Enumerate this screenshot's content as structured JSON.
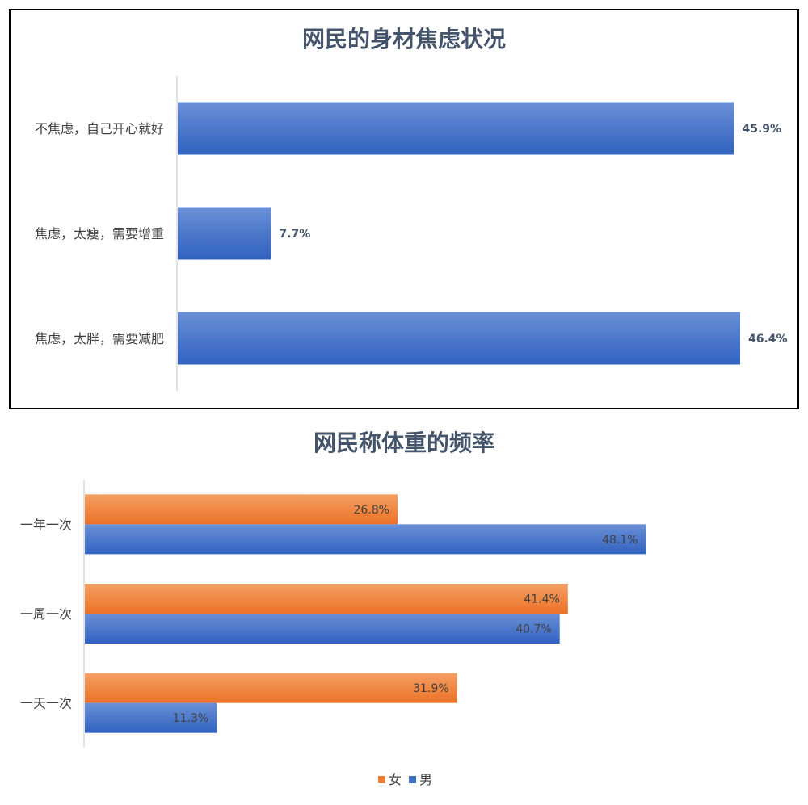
{
  "chart_data": [
    {
      "type": "bar",
      "orientation": "horizontal",
      "title": "网民的身材焦虑状况",
      "categories": [
        "不焦虑，自己开心就好",
        "焦虑，太瘦，需要增重",
        "焦虑，太胖，需要减肥"
      ],
      "values": [
        45.9,
        7.7,
        46.4
      ],
      "value_labels": [
        "45.9%",
        "7.7%",
        "46.4%"
      ],
      "xlim": [
        0,
        50
      ],
      "grid": false,
      "colors": [
        "#4472c4"
      ]
    },
    {
      "type": "bar",
      "orientation": "horizontal",
      "title": "网民称体重的频率",
      "categories": [
        "一年一次",
        "一周一次",
        "一天一次"
      ],
      "series": [
        {
          "name": "女",
          "values": [
            26.8,
            41.4,
            31.9
          ],
          "labels": [
            "26.8%",
            "41.4%",
            "31.9%"
          ],
          "color": "#ed7d31"
        },
        {
          "name": "男",
          "values": [
            48.1,
            40.7,
            11.3
          ],
          "labels": [
            "48.1%",
            "40.7%",
            "11.3%"
          ],
          "color": "#4472c4"
        }
      ],
      "xlim": [
        0,
        50
      ],
      "grid": false,
      "legend": "bottom"
    }
  ]
}
